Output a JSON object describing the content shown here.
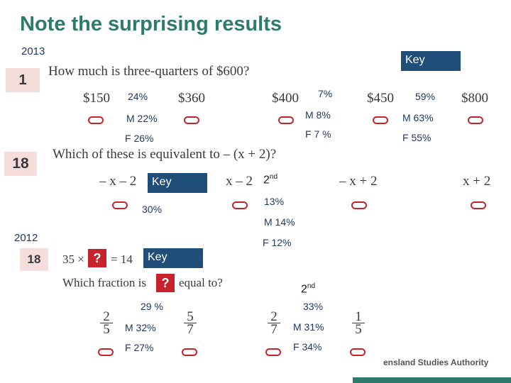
{
  "title": "Note the surprising results",
  "year2013": "2013",
  "year2012": "2012",
  "key_label": "Key",
  "q1": {
    "number": "1",
    "question": "How much is three-quarters of $600?",
    "options": [
      "$150",
      "$360",
      "$400",
      "$450",
      "$800"
    ],
    "stats": {
      "a": [
        "24%",
        "M 22%",
        "F 26%"
      ],
      "c": [
        "7%",
        "M 8%",
        "F  7 %"
      ],
      "e": [
        "59%",
        "M 63%",
        "F 55%"
      ]
    }
  },
  "q18a": {
    "number": "18",
    "question": "Which of these is equivalent to – (x + 2)?",
    "options": [
      "– x – 2",
      "x – 2",
      "– x + 2",
      "x + 2"
    ],
    "key_stats": [
      "30%"
    ],
    "second_label": "2",
    "second_sup": "nd",
    "second_stats": [
      "13%",
      "M 14%",
      "F 12%"
    ]
  },
  "q18b": {
    "number": "18",
    "equation_left": "35 ×",
    "equation_right": "= 14",
    "question_prefix": "Which fraction is",
    "question_suffix": "equal to?",
    "qmark": "?",
    "fractions": [
      {
        "num": "2",
        "den": "5"
      },
      {
        "num": "5",
        "den": "7"
      },
      {
        "num": "2",
        "den": "7"
      },
      {
        "num": "1",
        "den": "5"
      }
    ],
    "key_stats": [
      "29 %",
      "M  32%",
      "F  27%"
    ],
    "second_label": "2",
    "second_sup": "nd",
    "second_stats": [
      "33%",
      "M 31%",
      "F 34%"
    ]
  },
  "footer": "ensland Studies Authority",
  "colors": {
    "accent": "#2e7a6b",
    "key_bg": "#1f4e79",
    "oval": "#c8232c",
    "badge": "#f4dddb"
  }
}
